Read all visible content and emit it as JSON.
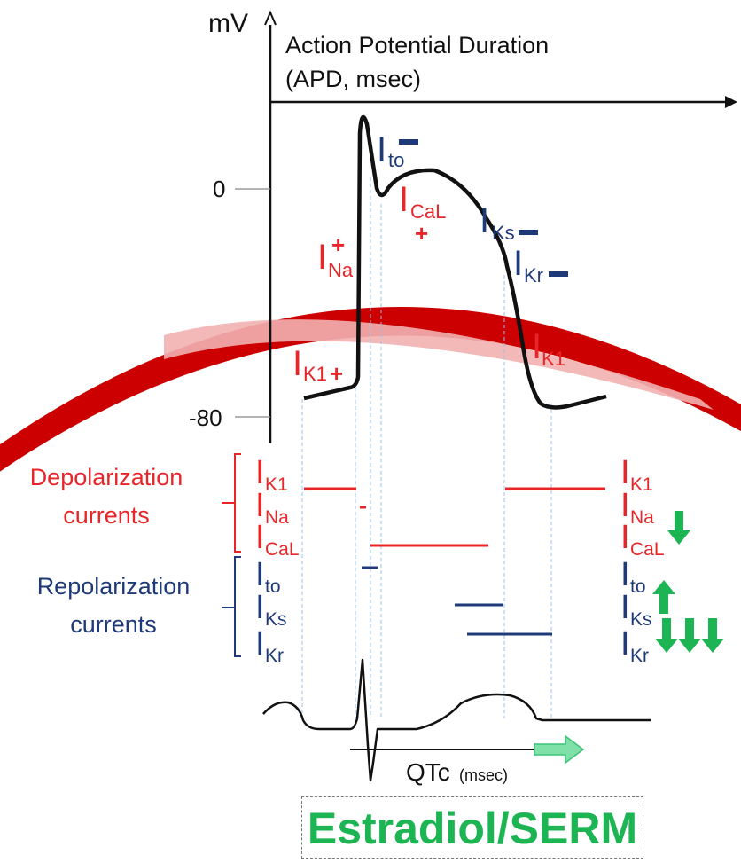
{
  "axis": {
    "y_unit": "mV",
    "x_title_line1": "Action Potential Duration",
    "x_title_line2": "(APD, msec)",
    "tick_zero": "0",
    "tick_minus80": "-80"
  },
  "ap_labels": {
    "ito": {
      "main": "I",
      "sub": "to",
      "sign": "−"
    },
    "ical": {
      "main": "I",
      "sub": "CaL",
      "sign": "+"
    },
    "iks": {
      "main": "I",
      "sub": "Ks",
      "sign": "−"
    },
    "ikr": {
      "main": "I",
      "sub": "Kr",
      "sign": "−"
    },
    "ina": {
      "main": "I",
      "sub": "Na",
      "sign": "+"
    },
    "ik1_left": {
      "main": "I",
      "sub": "K1",
      "sign": "+"
    },
    "ik1_right": {
      "main": "I",
      "sub": "K1"
    }
  },
  "groups": {
    "depolarization_line1": "Depolarization",
    "depolarization_line2": "currents",
    "repolarization_line1": "Repolarization",
    "repolarization_line2": "currents"
  },
  "currents_left": [
    {
      "main": "I",
      "sub": "K1",
      "color": "#e8262a"
    },
    {
      "main": "I",
      "sub": "Na",
      "color": "#e8262a"
    },
    {
      "main": "I",
      "sub": "CaL",
      "color": "#e8262a"
    },
    {
      "main": "I",
      "sub": "to",
      "color": "#1f3a78"
    },
    {
      "main": "I",
      "sub": "Ks",
      "color": "#1f3a78"
    },
    {
      "main": "I",
      "sub": "Kr",
      "color": "#1f3a78"
    }
  ],
  "currents_right": [
    {
      "main": "I",
      "sub": "K1",
      "color": "#e8262a",
      "arrow": "none"
    },
    {
      "main": "I",
      "sub": "Na",
      "color": "#e8262a",
      "arrow": "none"
    },
    {
      "main": "I",
      "sub": "CaL",
      "color": "#e8262a",
      "arrow": "down x1"
    },
    {
      "main": "I",
      "sub": "to",
      "color": "#1f3a78",
      "arrow": "none"
    },
    {
      "main": "I",
      "sub": "Ks",
      "color": "#1f3a78",
      "arrow": "up x1"
    },
    {
      "main": "I",
      "sub": "Kr",
      "color": "#1f3a78",
      "arrow": "down x3"
    }
  ],
  "ecg": {
    "qtc_main": "QTc",
    "qtc_unit": "(msec)"
  },
  "drug": {
    "label": "Estradiol/SERM"
  },
  "colors": {
    "depolarization": "#e8262a",
    "repolarization": "#1f3a78",
    "effect_arrow": "#1db553",
    "qtc_arrow": "#7fe0a8",
    "arc_dark": "#cc0000",
    "arc_light": "#f0a8a8"
  }
}
